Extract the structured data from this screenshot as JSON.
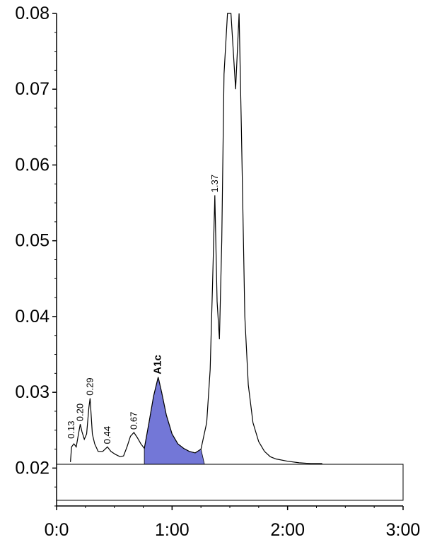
{
  "chart_data": {
    "type": "line",
    "title": "",
    "xlabel": "",
    "ylabel": "",
    "xlim": [
      0,
      3
    ],
    "ylim": [
      0.015,
      0.08
    ],
    "x_ticks": [
      {
        "value": 0,
        "label": "0:0"
      },
      {
        "value": 1,
        "label": "1:00"
      },
      {
        "value": 2,
        "label": "2:00"
      },
      {
        "value": 3,
        "label": "3:00"
      }
    ],
    "y_ticks": [
      {
        "value": 0.02,
        "label": "0.02"
      },
      {
        "value": 0.03,
        "label": "0.03"
      },
      {
        "value": 0.04,
        "label": "0.04"
      },
      {
        "value": 0.05,
        "label": "0.05"
      },
      {
        "value": 0.06,
        "label": "0.06"
      },
      {
        "value": 0.07,
        "label": "0.07"
      },
      {
        "value": 0.08,
        "label": "0.08"
      }
    ],
    "baseline_y": 0.0205,
    "peak_labels": [
      {
        "text": "0.13",
        "x": 0.13,
        "y": 0.0235
      },
      {
        "text": "0.20",
        "x": 0.205,
        "y": 0.0258
      },
      {
        "text": "0.29",
        "x": 0.29,
        "y": 0.0292
      },
      {
        "text": "0.44",
        "x": 0.44,
        "y": 0.0228
      },
      {
        "text": "0.67",
        "x": 0.67,
        "y": 0.0247
      },
      {
        "text": "1.37",
        "x": 1.37,
        "y": 0.056
      },
      {
        "text": "A1c",
        "x": 0.88,
        "y": 0.032,
        "bold": true
      }
    ],
    "shaded_peak": {
      "name": "A1c",
      "x_start": 0.76,
      "x_end": 1.28,
      "color": "#5a5fd0"
    },
    "series": [
      {
        "color": "#000000",
        "x": [
          0.12,
          0.13,
          0.15,
          0.17,
          0.19,
          0.205,
          0.22,
          0.24,
          0.26,
          0.28,
          0.29,
          0.31,
          0.33,
          0.36,
          0.4,
          0.44,
          0.47,
          0.51,
          0.55,
          0.58,
          0.61,
          0.64,
          0.67,
          0.7,
          0.73,
          0.76,
          0.8,
          0.84,
          0.88,
          0.91,
          0.95,
          1.0,
          1.05,
          1.1,
          1.15,
          1.2,
          1.25,
          1.3,
          1.33,
          1.35,
          1.37,
          1.39,
          1.41,
          1.43,
          1.45,
          1.48,
          1.51,
          1.55,
          1.58,
          1.6,
          1.63,
          1.66,
          1.7,
          1.75,
          1.8,
          1.85,
          1.9,
          2.0,
          2.1,
          2.2,
          2.3
        ],
        "y": [
          0.0208,
          0.0228,
          0.0232,
          0.0228,
          0.0245,
          0.0258,
          0.0248,
          0.0238,
          0.0245,
          0.028,
          0.0292,
          0.0245,
          0.0232,
          0.0222,
          0.0222,
          0.0228,
          0.0222,
          0.0218,
          0.0215,
          0.0216,
          0.0228,
          0.0242,
          0.0247,
          0.024,
          0.0232,
          0.0226,
          0.026,
          0.0295,
          0.032,
          0.03,
          0.027,
          0.0245,
          0.0232,
          0.0226,
          0.0222,
          0.022,
          0.0225,
          0.026,
          0.033,
          0.044,
          0.056,
          0.042,
          0.037,
          0.05,
          0.072,
          0.08,
          0.08,
          0.07,
          0.08,
          0.065,
          0.04,
          0.031,
          0.026,
          0.0235,
          0.0222,
          0.0215,
          0.0212,
          0.0209,
          0.0207,
          0.0206,
          0.0206
        ]
      }
    ]
  }
}
